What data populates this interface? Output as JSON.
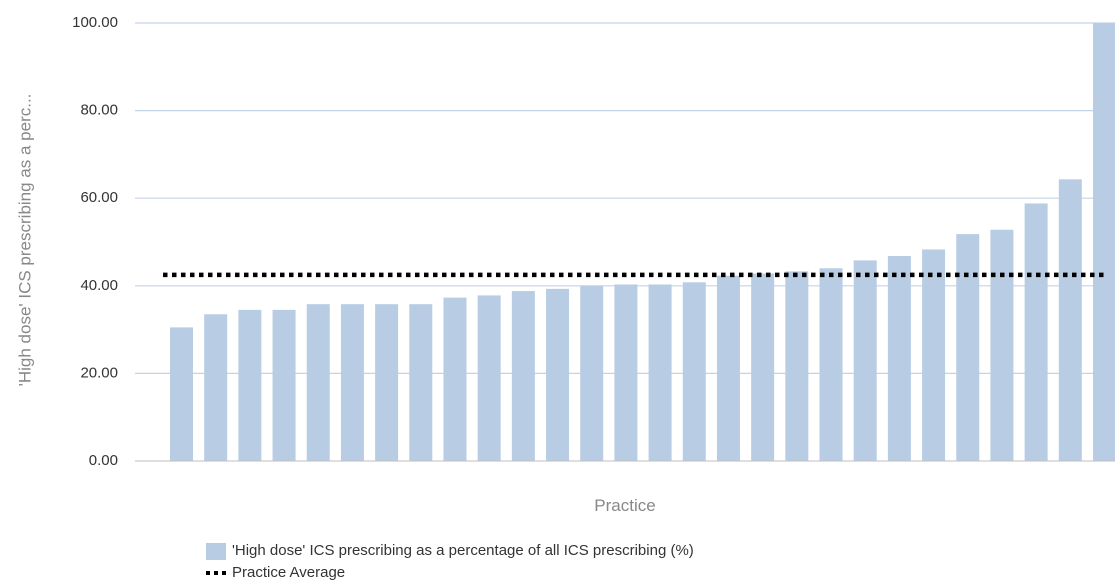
{
  "chart_data": {
    "type": "bar",
    "title": "",
    "xlabel": "Practice",
    "ylabel": "'High dose' ICS prescribing as a perc...",
    "ylim": [
      0,
      100
    ],
    "yticks": [
      "0.00",
      "20.00",
      "40.00",
      "60.00",
      "80.00",
      "100.00"
    ],
    "grid": true,
    "legend_placement": "bottom",
    "series": [
      {
        "name": "'High dose' ICS prescribing as a percentage of all ICS prescribing (%)",
        "type": "bar",
        "color": "#b8cce4",
        "values": [
          30.5,
          33.5,
          34.5,
          34.5,
          35.8,
          35.8,
          35.8,
          35.8,
          37.3,
          37.8,
          38.8,
          39.3,
          40.0,
          40.3,
          40.3,
          40.8,
          42.3,
          42.8,
          43.3,
          44.0,
          45.8,
          46.8,
          48.3,
          51.8,
          52.8,
          58.8,
          64.3,
          100.0
        ]
      },
      {
        "name": "Practice Average",
        "type": "line",
        "style": "dotted",
        "color": "#000000",
        "value": 42.5
      }
    ]
  }
}
